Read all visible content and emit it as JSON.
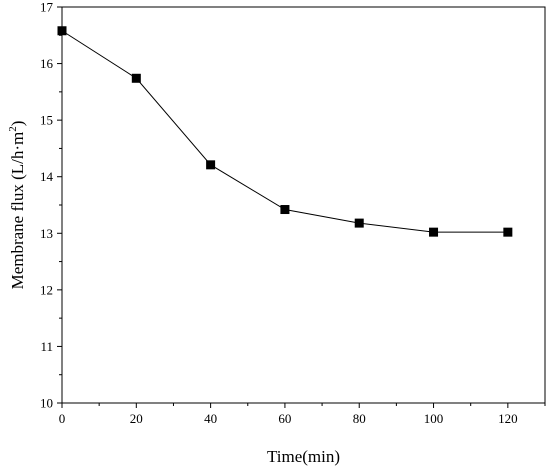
{
  "chart_data": {
    "type": "line",
    "title": "",
    "xlabel": "Time(min)",
    "ylabel_main": "Membrane flux (L/h·m",
    "ylabel_sup": "2",
    "ylabel_close": ")",
    "xlim": [
      0,
      130
    ],
    "ylim": [
      10,
      17
    ],
    "xticks": [
      0,
      20,
      40,
      60,
      80,
      100,
      120
    ],
    "yticks": [
      10,
      11,
      12,
      13,
      14,
      15,
      16,
      17
    ],
    "grid": false,
    "legend": "none",
    "series": [
      {
        "marker": "square",
        "color": "#000000",
        "x": [
          0,
          20,
          40,
          60,
          80,
          100,
          120
        ],
        "y": [
          16.58,
          15.74,
          14.21,
          13.42,
          13.18,
          13.02,
          13.02
        ]
      }
    ]
  }
}
